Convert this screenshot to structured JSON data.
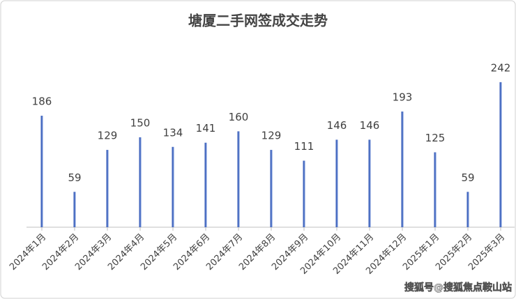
{
  "chart_data": {
    "type": "bar",
    "title": "塘厦二手网签成交走势",
    "categories": [
      "2024年1月",
      "2024年2月",
      "2024年3月",
      "2024年4月",
      "2024年5月",
      "2024年6月",
      "2024年7月",
      "2024年8月",
      "2024年9月",
      "2024年10月",
      "2024年11月",
      "2024年12月",
      "2025年1月",
      "2025年2月",
      "2025年3月"
    ],
    "values": [
      186,
      59,
      129,
      150,
      134,
      141,
      160,
      129,
      111,
      146,
      146,
      193,
      125,
      59,
      242
    ],
    "color": "#2f55b4"
  },
  "watermark": "搜狐号@搜狐焦点鞍山站"
}
